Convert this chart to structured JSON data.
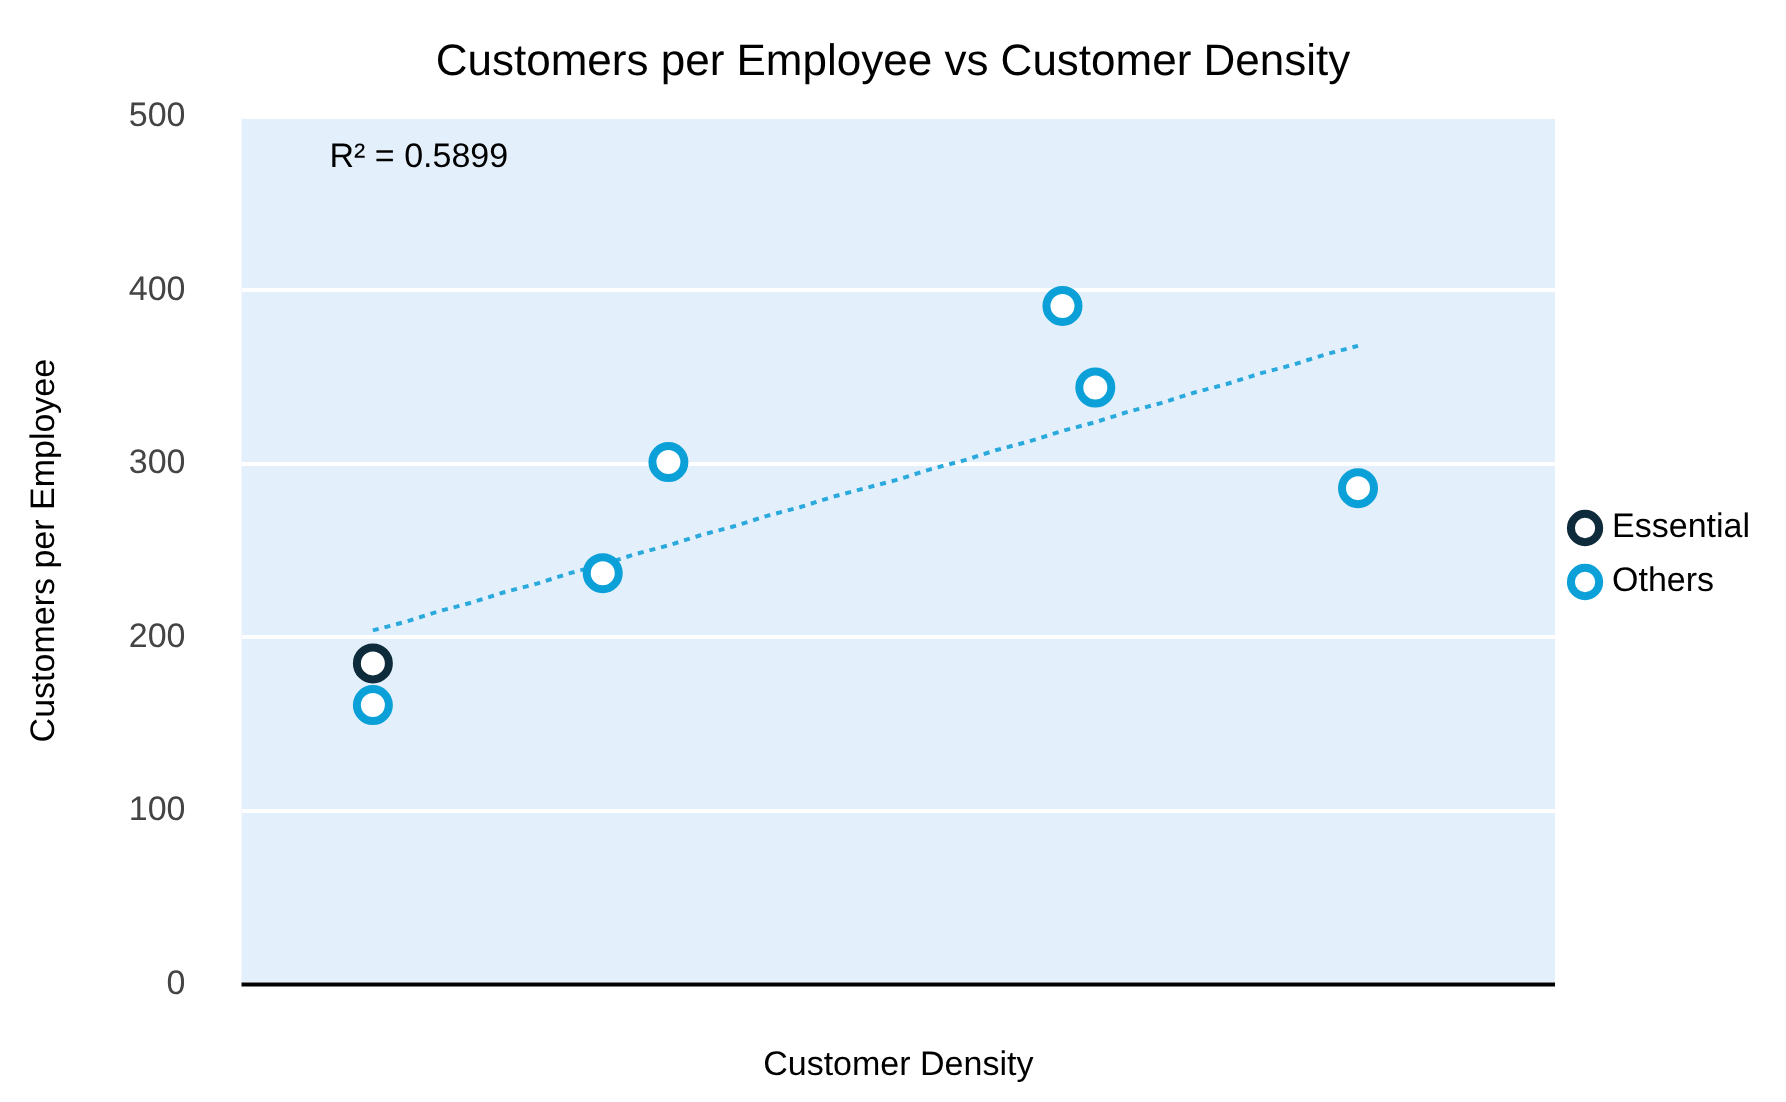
{
  "chart_data": {
    "type": "scatter",
    "title": "Customers per Employee vs Customer Density",
    "xlabel": "Customer Density",
    "ylabel": "Customers per Employee",
    "categories": [
      null,
      null,
      null,
      null,
      null,
      null,
      null,
      null,
      null,
      null,
      null,
      null,
      null,
      null,
      null,
      null,
      null,
      null,
      null,
      null,
      null,
      null,
      null,
      null,
      null,
      null,
      null,
      null,
      null,
      null,
      null,
      null,
      null,
      null,
      null,
      null,
      null,
      null,
      null,
      null,
      null
    ],
    "ylim": [
      0,
      500
    ],
    "yticks": [
      0,
      100,
      200,
      300,
      400,
      500
    ],
    "grid": "y",
    "legend": "right",
    "marker": "circle",
    "annotations": [
      "R² = 0.5899"
    ],
    "series": [
      {
        "name": "Essential",
        "color": "#0d2b3a",
        "values": [
          null,
          null,
          null,
          null,
          185,
          null,
          null,
          null,
          null,
          null,
          null,
          null,
          null,
          null,
          null,
          null,
          null,
          null,
          null,
          null,
          null,
          null,
          null,
          null,
          null,
          null,
          null,
          null,
          null,
          null,
          null,
          null,
          null,
          null,
          null,
          null,
          null,
          null,
          null,
          null,
          null
        ]
      },
      {
        "name": "Others",
        "color": "#0ba0d8",
        "values": [
          null,
          null,
          null,
          null,
          161,
          null,
          null,
          null,
          null,
          null,
          null,
          237,
          null,
          301,
          null,
          null,
          null,
          null,
          null,
          null,
          null,
          null,
          null,
          null,
          null,
          391,
          344,
          null,
          null,
          null,
          null,
          null,
          null,
          null,
          286,
          null,
          null,
          null,
          null,
          null,
          null
        ]
      },
      {
        "type": "line",
        "color": "#2aa9dd",
        "line_style": "dotted",
        "marker": "none",
        "values": [
          null,
          null,
          null,
          null,
          204,
          209,
          215,
          220,
          226,
          231,
          237,
          242,
          248,
          253,
          259,
          264,
          270,
          275,
          281,
          286,
          291,
          297,
          302,
          308,
          313,
          319,
          324,
          330,
          335,
          341,
          346,
          352,
          357,
          363,
          368,
          null,
          null,
          null,
          null,
          null,
          null
        ]
      }
    ]
  }
}
